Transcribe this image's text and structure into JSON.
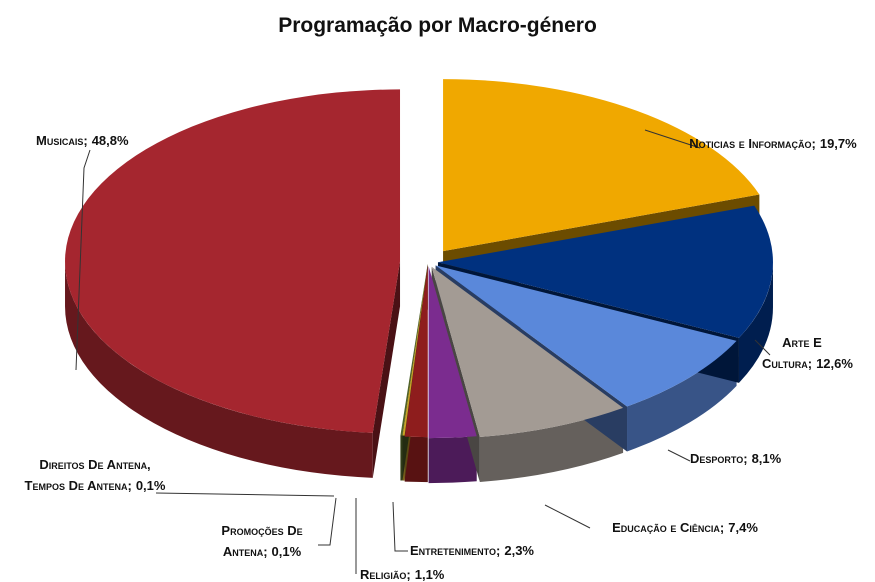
{
  "chart_data": {
    "type": "pie",
    "title": "Programação por Macro-género",
    "categories": [
      "Noticias e Informação",
      "Arte E Cultura",
      "Desporto",
      "Educação e Ciência",
      "Entretenimento",
      "Religião",
      "Promoções De Antena",
      "Direitos De Antena, Tempos De Antena",
      "Musicais"
    ],
    "values": [
      19.7,
      12.6,
      8.1,
      7.4,
      2.3,
      1.1,
      0.1,
      0.1,
      48.8
    ],
    "value_labels": [
      "19,7%",
      "12,6%",
      "8,1%",
      "7,4%",
      "2,3%",
      "1,1%",
      "0,1%",
      "0,1%",
      "48,8%"
    ],
    "label_separator": ";",
    "colors": [
      "#f0a800",
      "#00317f",
      "#5a88da",
      "#a39b94",
      "#7b2c8f",
      "#8e1d1d",
      "#c9a227",
      "#4f6228",
      "#a5262f"
    ]
  }
}
